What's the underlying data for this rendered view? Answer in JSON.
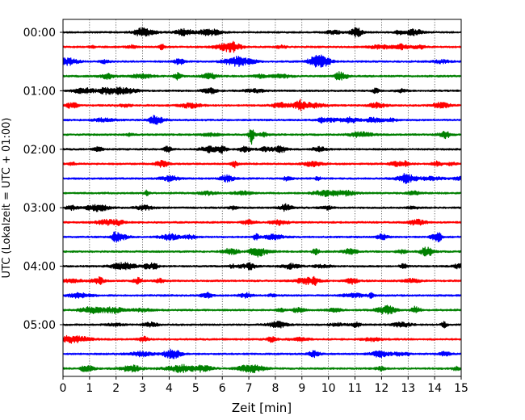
{
  "chart_data": {
    "type": "line",
    "title": "",
    "xlabel": "Zeit  [min]",
    "ylabel": "UTC (Lokalzeit = UTC + 01:00)",
    "xlim": [
      0,
      15
    ],
    "x_ticks": [
      "0",
      "1",
      "2",
      "3",
      "4",
      "5",
      "6",
      "7",
      "8",
      "9",
      "10",
      "11",
      "12",
      "13",
      "14",
      "15"
    ],
    "y_tick_labels": [
      "00:00",
      "01:00",
      "02:00",
      "03:00",
      "04:00",
      "05:00"
    ],
    "trace_count": 24,
    "trace_interval_minutes": 15,
    "trace_colors": [
      "#000000",
      "#ff0000",
      "#0000ff",
      "#008000"
    ],
    "vertical_grid": "dotted",
    "legend": "none",
    "events": [
      {
        "trace_index": 7,
        "start_time": "01:45",
        "minute": 7.1,
        "description": "larger burst"
      }
    ]
  }
}
